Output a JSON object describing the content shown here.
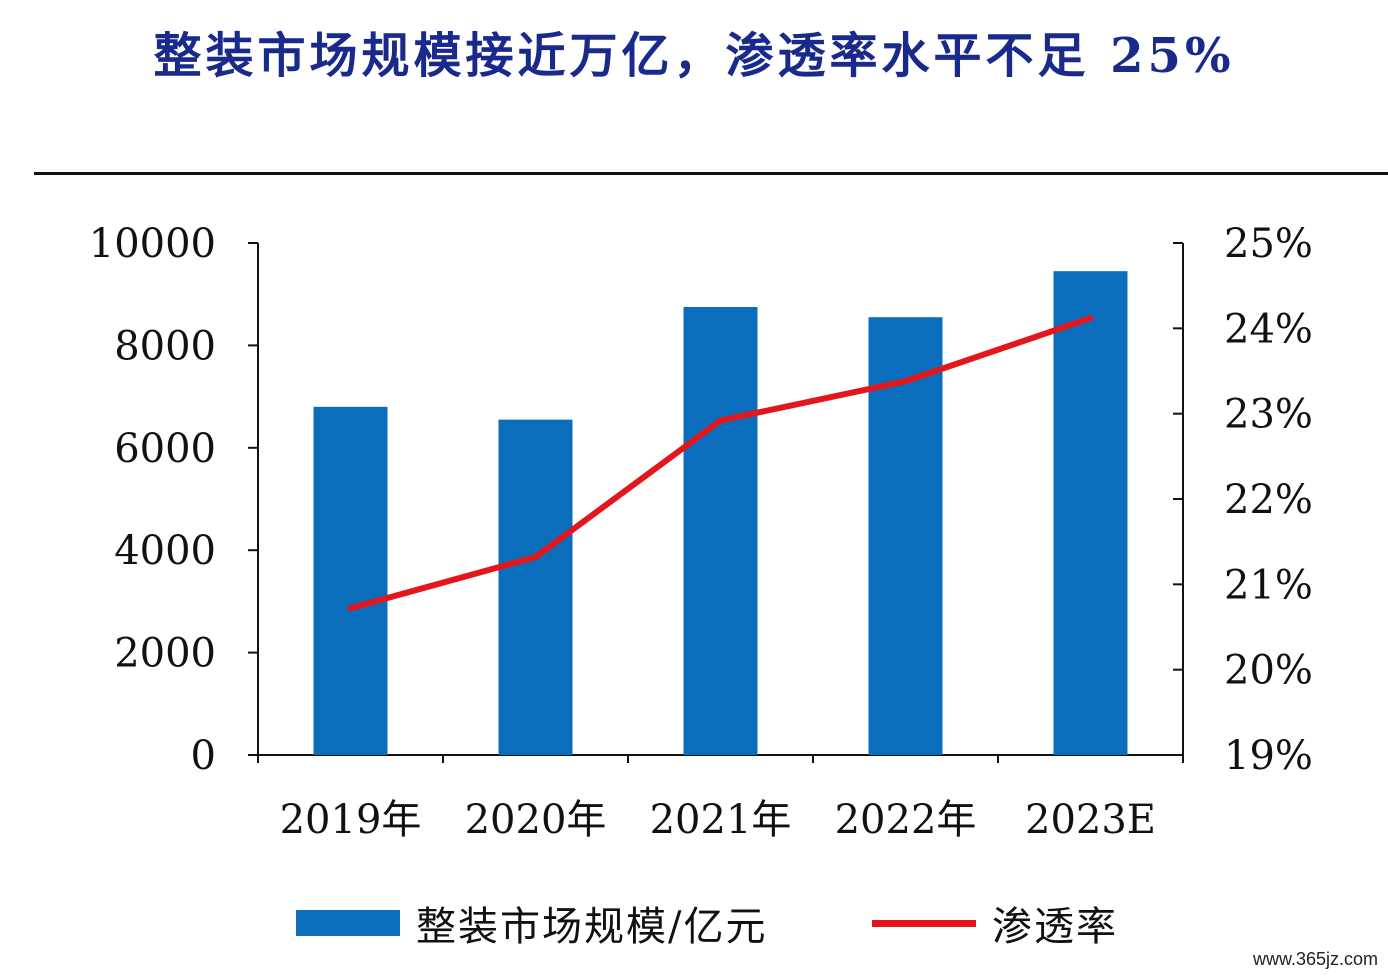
{
  "title": "整装市场规模接近万亿，渗透率水平不足 25%",
  "watermark": "www.365jz.com",
  "colors": {
    "bar": "#0a6ebd",
    "line": "#e3161b",
    "title": "#1a2a8c"
  },
  "chart_data": {
    "type": "bar",
    "categories": [
      "2019年",
      "2020年",
      "2021年",
      "2022年",
      "2023E"
    ],
    "series": [
      {
        "name": "整装市场规模/亿元",
        "type": "bar",
        "axis": "left",
        "values": [
          6800,
          6550,
          8750,
          8550,
          9450
        ]
      },
      {
        "name": "渗透率",
        "type": "line",
        "axis": "right",
        "values": [
          20.72,
          21.32,
          22.92,
          23.38,
          24.12
        ]
      }
    ],
    "y_left": {
      "range": [
        0,
        10000
      ],
      "ticks": [
        "0",
        "2000",
        "4000",
        "6000",
        "8000",
        "10000"
      ]
    },
    "y_right": {
      "range": [
        19,
        25
      ],
      "ticks": [
        "19%",
        "20%",
        "21%",
        "22%",
        "23%",
        "24%",
        "25%"
      ]
    },
    "legend_position": "bottom",
    "grid": false
  }
}
